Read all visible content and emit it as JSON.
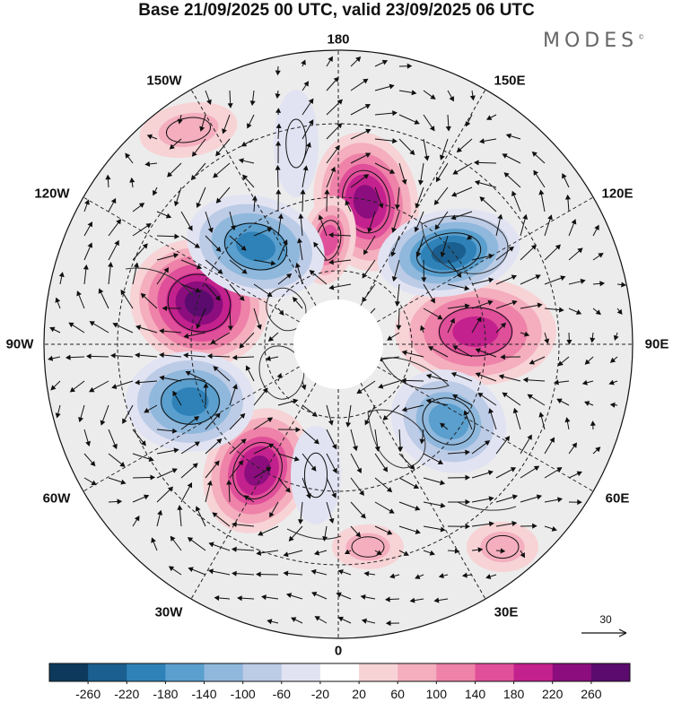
{
  "title": "Base 21/09/2025 00 UTC, valid 23/09/2025 06 UTC",
  "brand": "MODES",
  "brand_mark": "©",
  "longitude_labels": {
    "lon_180": "180",
    "lon_150e": "150E",
    "lon_120e": "120E",
    "lon_90e": "90E",
    "lon_60e": "60E",
    "lon_30e": "30E",
    "lon_0": "0",
    "lon_30w": "30W",
    "lon_60w": "60W",
    "lon_90w": "90W",
    "lon_120w": "120W",
    "lon_150w": "150W"
  },
  "reference_vector": {
    "label": "30"
  },
  "colorbar": {
    "ticks": [
      "-260",
      "-220",
      "-180",
      "-140",
      "-100",
      "-60",
      "-20",
      "20",
      "60",
      "100",
      "140",
      "180",
      "220",
      "260"
    ],
    "colors": [
      "#0d3a5c",
      "#1a5f8f",
      "#2f82b8",
      "#5a9fce",
      "#8fb8dc",
      "#bccbe6",
      "#e2e3f2",
      "#ffffff",
      "#f7d3d6",
      "#f4aebd",
      "#ee82a8",
      "#e04f9a",
      "#c3218d",
      "#8c0d7e",
      "#5b0b6e"
    ]
  },
  "colors": {
    "land": "#ececec",
    "pole_cap": "#ffffff",
    "grid": "#222222",
    "coast": "#333333"
  },
  "anomalies": [
    {
      "id": "pos-90w",
      "value": 260
    },
    {
      "id": "pos-170e",
      "value": 220
    },
    {
      "id": "pos-175w",
      "value": 140
    },
    {
      "id": "pos-90e",
      "value": 180
    },
    {
      "id": "pos-40w",
      "value": 220
    },
    {
      "id": "pos-20e",
      "value": 60
    },
    {
      "id": "pos-40e",
      "value": 60
    },
    {
      "id": "pos-150w",
      "value": 60
    },
    {
      "id": "neg-130w",
      "value": -220
    },
    {
      "id": "neg-130e",
      "value": -260
    },
    {
      "id": "neg-65w",
      "value": -220
    },
    {
      "id": "neg-60e",
      "value": -180
    },
    {
      "id": "neg-15w",
      "value": -60
    },
    {
      "id": "neg-165w",
      "value": -60
    }
  ]
}
